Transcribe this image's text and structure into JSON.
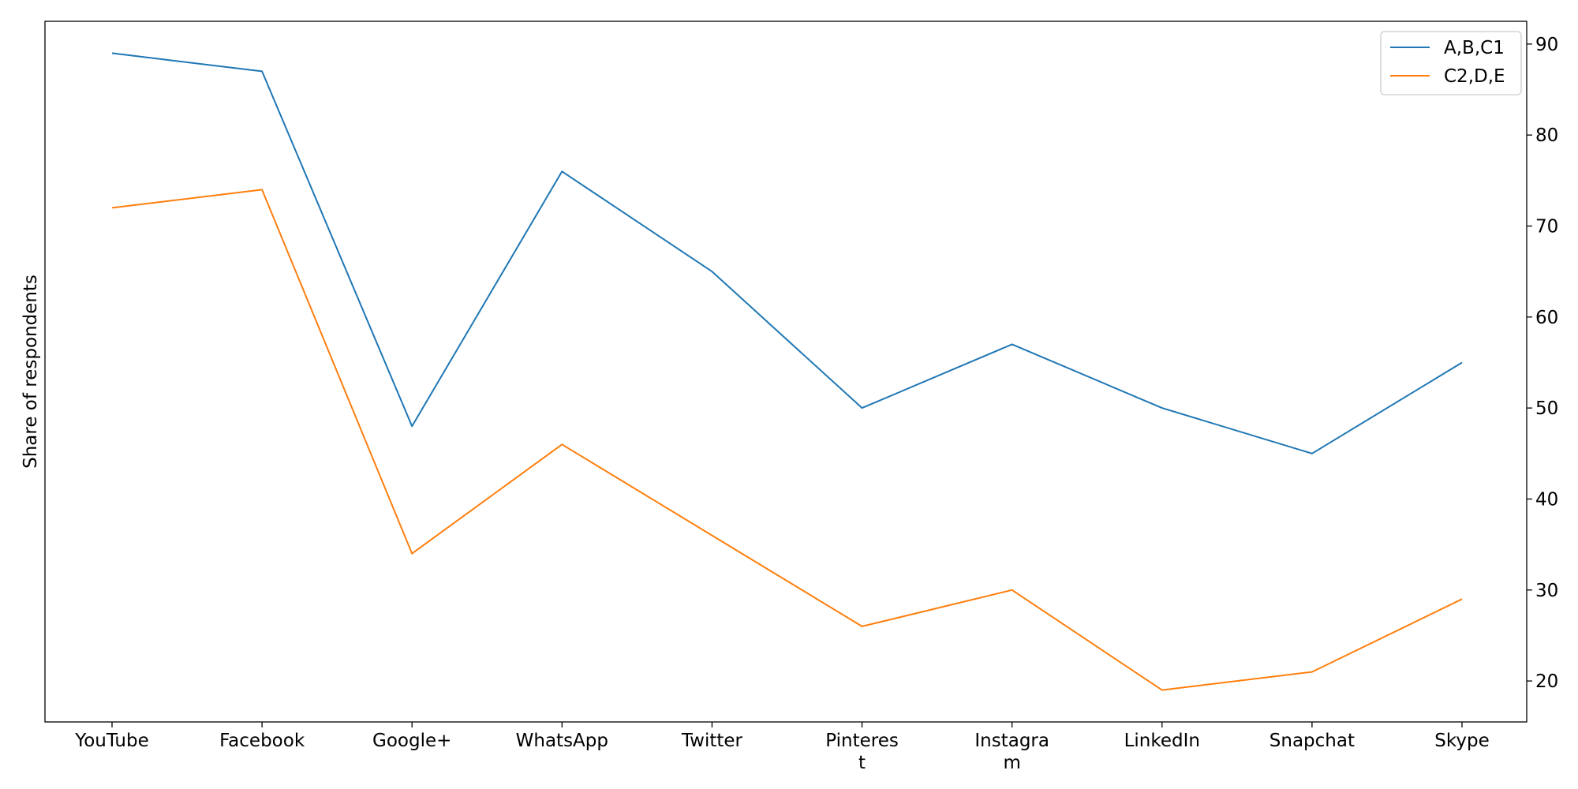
{
  "chart_data": {
    "type": "line",
    "title": "",
    "xlabel": "",
    "ylabel": "Share of respondents",
    "y_axis_side": "right",
    "ylim": [
      15.5,
      92.5
    ],
    "yticks": [
      20,
      30,
      40,
      50,
      60,
      70,
      80,
      90
    ],
    "grid": false,
    "legend_position": "top-right",
    "categories": [
      "YouTube",
      "Facebook",
      "Google+",
      "WhatsApp",
      "Twitter",
      "Pinterest",
      "Instagram",
      "LinkedIn",
      "Snapchat",
      "Skype"
    ],
    "category_display": [
      [
        "YouTube"
      ],
      [
        "Facebook"
      ],
      [
        "Google+"
      ],
      [
        "WhatsApp"
      ],
      [
        "Twitter"
      ],
      [
        "Pinteres",
        "t"
      ],
      [
        "Instagra",
        "m"
      ],
      [
        "LinkedIn"
      ],
      [
        "Snapchat"
      ],
      [
        "Skype"
      ]
    ],
    "series": [
      {
        "name": "A,B,C1",
        "color": "#1f77b4",
        "values": [
          89,
          87,
          48,
          76,
          65,
          50,
          57,
          50,
          45,
          55
        ]
      },
      {
        "name": "C2,D,E",
        "color": "#ff7f0e",
        "values": [
          72,
          74,
          34,
          46,
          36,
          26,
          30,
          19,
          21,
          29
        ]
      }
    ]
  }
}
